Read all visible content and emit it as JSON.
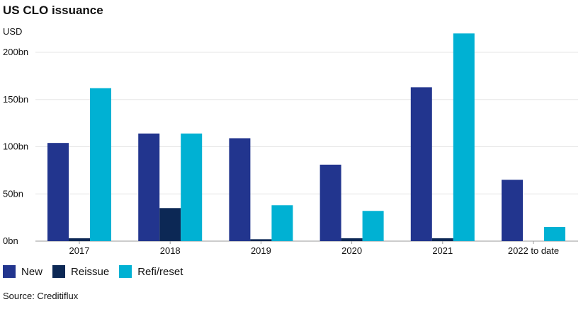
{
  "chart_data": {
    "type": "bar",
    "title": "US CLO issuance",
    "ylabel": "USD",
    "xlabel": "",
    "categories": [
      "2017",
      "2018",
      "2019",
      "2020",
      "2021",
      "2022 to date"
    ],
    "series": [
      {
        "name": "New",
        "color": "#22358e",
        "values": [
          104,
          114,
          109,
          81,
          163,
          65
        ]
      },
      {
        "name": "Reissue",
        "color": "#0c2855",
        "values": [
          3,
          35,
          2,
          3,
          3,
          0
        ]
      },
      {
        "name": "Refi/reset",
        "color": "#00b1d3",
        "values": [
          162,
          114,
          38,
          32,
          220,
          15
        ]
      }
    ],
    "ylim": [
      0,
      220
    ],
    "yticks": [
      0,
      50,
      100,
      150,
      200
    ],
    "ytick_labels": [
      "0bn",
      "50bn",
      "100bn",
      "150bn",
      "200bn"
    ],
    "grid": true,
    "legend_position": "bottom-left",
    "source": "Source: Creditiflux"
  }
}
